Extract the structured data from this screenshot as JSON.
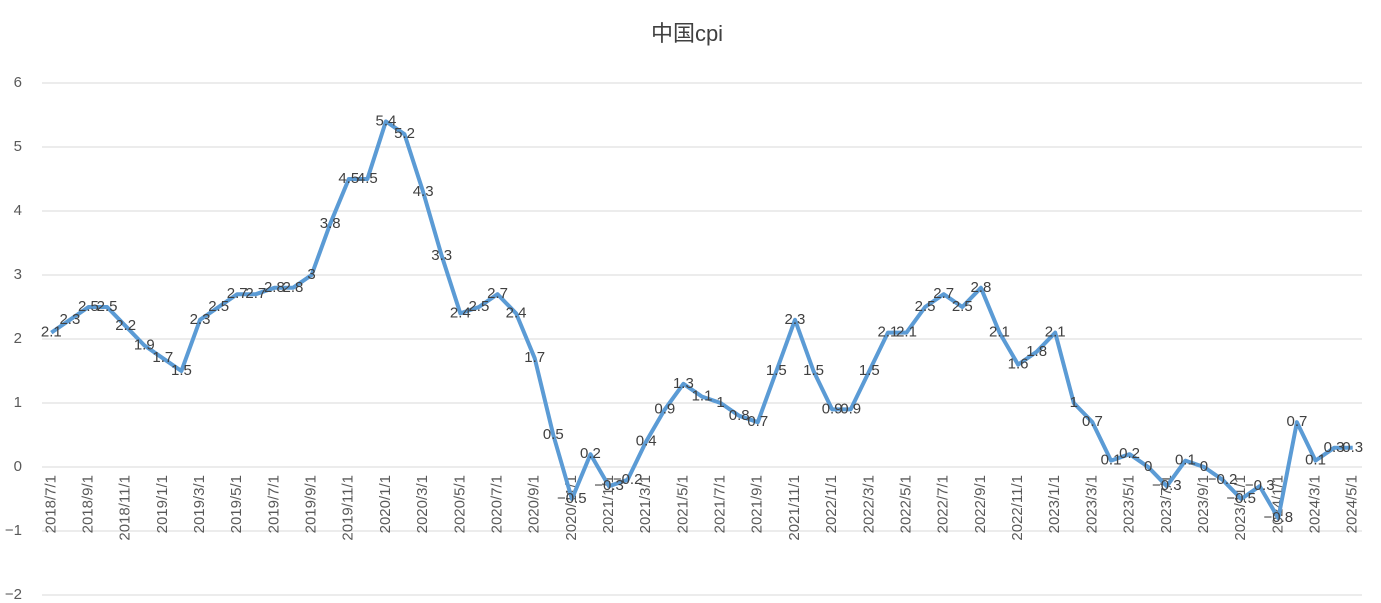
{
  "chart_data": {
    "type": "line",
    "title": "中国cpi",
    "categories": [
      "2018/7/1",
      null,
      "2018/9/1",
      null,
      "2018/11/1",
      null,
      "2019/1/1",
      null,
      "2019/3/1",
      null,
      "2019/5/1",
      null,
      "2019/7/1",
      null,
      "2019/9/1",
      null,
      "2019/11/1",
      null,
      "2020/1/1",
      null,
      "2020/3/1",
      null,
      "2020/5/1",
      null,
      "2020/7/1",
      null,
      "2020/9/1",
      null,
      "2020/11/1",
      null,
      "2021/1/1",
      null,
      "2021/3/1",
      null,
      "2021/5/1",
      null,
      "2021/7/1",
      null,
      "2021/9/1",
      null,
      "2021/11/1",
      null,
      "2022/1/1",
      null,
      "2022/3/1",
      null,
      "2022/5/1",
      null,
      "2022/7/1",
      null,
      "2022/9/1",
      null,
      "2022/11/1",
      null,
      "2023/1/1",
      null,
      "2023/3/1",
      null,
      "2023/5/1",
      null,
      "2023/7/1",
      null,
      "2023/9/1",
      null,
      "2023/11/1",
      null,
      "2024/1/1",
      null,
      "2024/3/1",
      null,
      "2024/5/1"
    ],
    "series": [
      {
        "color": "#5b9bd5",
        "values": [
          2.1,
          2.3,
          2.5,
          2.5,
          2.2,
          1.9,
          1.7,
          1.5,
          2.3,
          2.5,
          2.7,
          2.7,
          2.8,
          2.8,
          3,
          3.8,
          4.5,
          4.5,
          5.4,
          5.2,
          4.3,
          3.3,
          2.4,
          2.5,
          2.7,
          2.4,
          1.7,
          0.5,
          -0.5,
          0.2,
          -0.3,
          -0.2,
          0.4,
          0.9,
          1.3,
          1.1,
          1,
          0.8,
          0.7,
          1.5,
          2.3,
          1.5,
          0.9,
          0.9,
          1.5,
          2.1,
          2.1,
          2.5,
          2.7,
          2.5,
          2.8,
          2.1,
          1.6,
          1.8,
          2.1,
          1,
          0.7,
          0.1,
          0.2,
          0,
          -0.3,
          0.1,
          0,
          -0.2,
          -0.5,
          -0.3,
          -0.8,
          0.7,
          0.1,
          0.3,
          0.3
        ],
        "value_labels": [
          "2.1",
          "2.3",
          "2.5",
          "2.5",
          "2.2",
          "1.9",
          "1.7",
          "1.5",
          "2.3",
          "2.5",
          "2.7",
          "2.7",
          "2.8",
          "2.8",
          "3",
          "3.8",
          "4.5",
          "4.5",
          "5.4",
          "5.2",
          "4.3",
          "3.3",
          "2.4",
          "2.5",
          "2.7",
          "2.4",
          "1.7",
          "0.5",
          "−0.5",
          "0.2",
          "−0.3",
          "−0.2",
          "0.4",
          "0.9",
          "1.3",
          "1.1",
          "1",
          "0.8",
          "0.7",
          "1.5",
          "2.3",
          "1.5",
          "0.9",
          "0.9",
          "1.5",
          "2.1",
          "2.1",
          "2.5",
          "2.7",
          "2.5",
          "2.8",
          "2.1",
          "1.6",
          "1.8",
          "2.1",
          "1",
          "0.7",
          "0.1",
          "0.2",
          "0",
          "−0.3",
          "0.1",
          "0",
          "−0.2",
          "−0.5",
          "−0.3",
          "−0.8",
          "0.7",
          "0.1",
          "0.3",
          "0.3"
        ]
      }
    ],
    "ylim": [
      -2,
      6
    ],
    "yticks": [
      {
        "value": -2,
        "label": "−2"
      },
      {
        "value": -1,
        "label": "−1"
      },
      0,
      1,
      2,
      3,
      4,
      5,
      6
    ],
    "grid": true
  }
}
